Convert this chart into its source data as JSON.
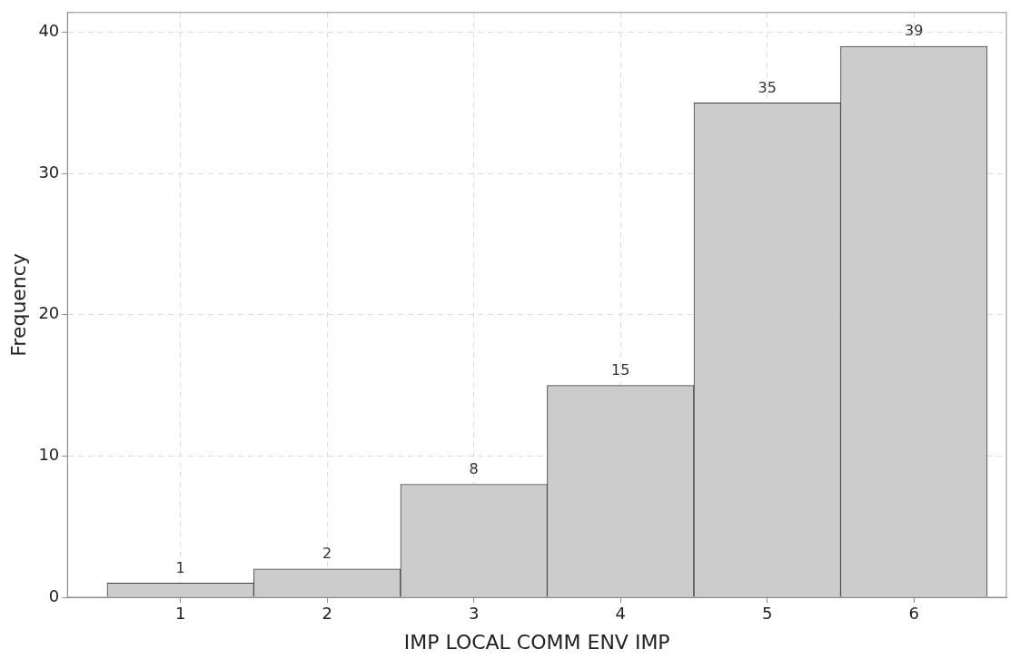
{
  "chart_data": {
    "type": "histogram",
    "xlabel": "IMP LOCAL COMM ENV IMP",
    "ylabel": "Frequency",
    "bins": [
      0.5,
      1.5,
      2.5,
      3.5,
      4.5,
      5.5,
      6.5
    ],
    "values": [
      1,
      2,
      8,
      15,
      35,
      39
    ],
    "color": "#cccccc",
    "xlim": [
      0.23,
      6.63
    ],
    "xticks": [
      1,
      2,
      3,
      4,
      5,
      6
    ],
    "ylim": [
      0,
      41.4
    ],
    "yticks": [
      0,
      10,
      20,
      30,
      40
    ],
    "grid": true,
    "data_labels": true,
    "legend": false
  }
}
